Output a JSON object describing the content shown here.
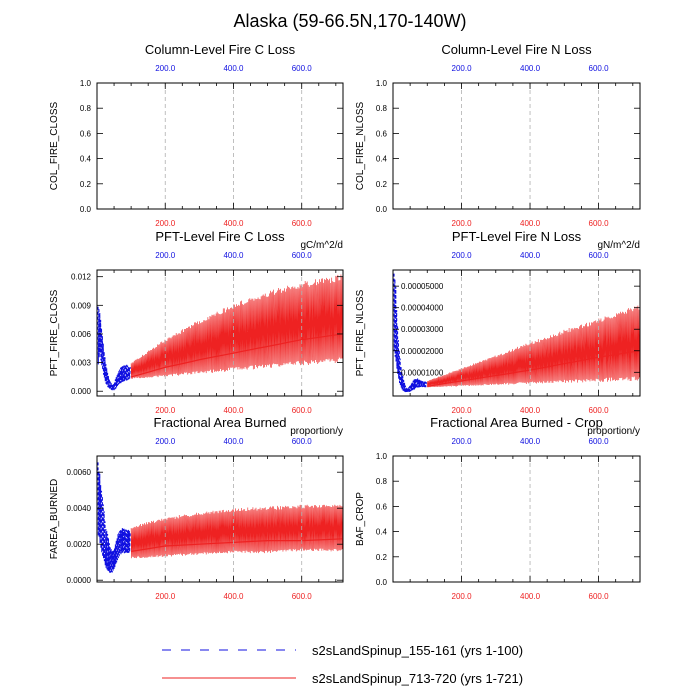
{
  "figure_title": "Alaska (59-66.5N,170-140W)",
  "colors": {
    "run1": "#1010e0",
    "run2": "#ee2222",
    "grid": "#b0b0b0",
    "axis": "#000000"
  },
  "chart_data": [
    {
      "type": "line",
      "title": "Column-Level Fire C Loss",
      "ylabel": "COL_FIRE_CLOSS",
      "units": "",
      "xlim": [
        0,
        721
      ],
      "ylim": [
        0,
        1
      ],
      "yticks": [
        "0.0",
        "0.2",
        "0.4",
        "0.6",
        "0.8",
        "1.0"
      ],
      "ytick_values": [
        0,
        0.2,
        0.4,
        0.6,
        0.8,
        1.0
      ],
      "top_ticks": [
        "200.0",
        "400.0",
        "600.0"
      ],
      "bottom_ticks": [
        "200.0",
        "400.0",
        "600.0"
      ],
      "xtick_values": [
        200,
        400,
        600
      ],
      "series": []
    },
    {
      "type": "line",
      "title": "Column-Level Fire N Loss",
      "ylabel": "COL_FIRE_NLOSS",
      "units": "",
      "xlim": [
        0,
        721
      ],
      "ylim": [
        0,
        1
      ],
      "yticks": [
        "0.0",
        "0.2",
        "0.4",
        "0.6",
        "0.8",
        "1.0"
      ],
      "ytick_values": [
        0,
        0.2,
        0.4,
        0.6,
        0.8,
        1.0
      ],
      "top_ticks": [
        "200.0",
        "400.0",
        "600.0"
      ],
      "bottom_ticks": [
        "200.0",
        "400.0",
        "600.0"
      ],
      "xtick_values": [
        200,
        400,
        600
      ],
      "series": []
    },
    {
      "type": "line",
      "title": "PFT-Level Fire C Loss",
      "ylabel": "PFT_FIRE_CLOSS",
      "units": "gC/m^2/d",
      "xlim": [
        0,
        721
      ],
      "ylim": [
        -0.0005,
        0.0127
      ],
      "yticks": [
        "0.000",
        "0.003",
        "0.006",
        "0.009",
        "0.012"
      ],
      "ytick_values": [
        0,
        0.003,
        0.006,
        0.009,
        0.012
      ],
      "top_ticks": [
        "200.0",
        "400.0",
        "600.0"
      ],
      "bottom_ticks": [
        "200.0",
        "400.0",
        "600.0"
      ],
      "xtick_values": [
        200,
        400,
        600
      ],
      "series": [
        {
          "name": "s2sLandSpinup_155-161 (yrs 1-100)",
          "style": "dashed",
          "color": "#1010e0",
          "x": [
            3,
            8,
            14,
            20,
            26,
            32,
            38,
            44,
            50,
            56,
            62,
            68,
            74,
            80,
            86,
            92,
            98
          ],
          "low": [
            0.0025,
            0.004,
            0.0025,
            0.0015,
            0.0008,
            0.0004,
            0.0002,
            0.0001,
            0.0001,
            0.0003,
            0.0006,
            0.0008,
            0.0009,
            0.001,
            0.0011,
            0.0012,
            0.0013
          ],
          "high": [
            0.0093,
            0.0085,
            0.0065,
            0.0045,
            0.003,
            0.0018,
            0.0011,
            0.0007,
            0.0008,
            0.0015,
            0.002,
            0.0025,
            0.0027,
            0.0028,
            0.0028,
            0.0027,
            0.0026
          ]
        },
        {
          "name": "s2sLandSpinup_713-720 (yrs 1-721)",
          "style": "solid",
          "color": "#ee2222",
          "x": [
            100,
            200,
            300,
            400,
            500,
            600,
            721
          ],
          "low": [
            0.0013,
            0.0015,
            0.0018,
            0.0021,
            0.0024,
            0.0027,
            0.003
          ],
          "high": [
            0.003,
            0.0055,
            0.0075,
            0.0092,
            0.0105,
            0.0115,
            0.0123
          ],
          "mid": [
            0.0015,
            0.0025,
            0.0033,
            0.004,
            0.0047,
            0.0054,
            0.006
          ]
        }
      ]
    },
    {
      "type": "line",
      "title": "PFT-Level Fire N Loss",
      "ylabel": "PFT_FIRE_NLOSS",
      "units": "gN/m^2/d",
      "xlim": [
        0,
        721
      ],
      "ylim": [
        -1e-06,
        5.75e-05
      ],
      "yticks": [
        "0.00001000",
        "0.00002000",
        "0.00003000",
        "0.00004000",
        "0.00005000"
      ],
      "ytick_values": [
        1e-05,
        2e-05,
        3e-05,
        4e-05,
        5e-05
      ],
      "top_ticks": [
        "200.0",
        "400.0",
        "600.0"
      ],
      "bottom_ticks": [
        "200.0",
        "400.0",
        "600.0"
      ],
      "xtick_values": [
        200,
        400,
        600
      ],
      "series": [
        {
          "name": "s2sLandSpinup_155-161 (yrs 1-100)",
          "style": "dashed",
          "color": "#1010e0",
          "x": [
            3,
            8,
            14,
            20,
            26,
            32,
            38,
            44,
            50,
            56,
            62,
            68,
            74,
            80,
            86,
            92,
            98
          ],
          "low": [
            2e-05,
            1.5e-05,
            8e-06,
            4e-06,
            2e-06,
            1e-06,
            5e-07,
            5e-07,
            1e-06,
            1.5e-06,
            2e-06,
            2.5e-06,
            3e-06,
            3e-06,
            3e-06,
            3e-06,
            3e-06
          ],
          "high": [
            5.75e-05,
            5e-05,
            3e-05,
            1.8e-05,
            1e-05,
            6e-06,
            3e-06,
            3e-06,
            4e-06,
            5.5e-06,
            7e-06,
            7.5e-06,
            7e-06,
            6.5e-06,
            6e-06,
            5.8e-06,
            5.6e-06
          ]
        },
        {
          "name": "s2sLandSpinup_713-720 (yrs 1-721)",
          "style": "solid",
          "color": "#ee2222",
          "x": [
            100,
            200,
            300,
            400,
            500,
            600,
            721
          ],
          "low": [
            3e-06,
            3.5e-06,
            4e-06,
            4.5e-06,
            5e-06,
            5.5e-06,
            6e-06
          ],
          "high": [
            6e-06,
            1.2e-05,
            1.8e-05,
            2.4e-05,
            3e-05,
            3.5e-05,
            4.2e-05
          ],
          "mid": [
            3.5e-06,
            6e-06,
            8.5e-06,
            1.1e-05,
            1.4e-05,
            1.7e-05,
            2e-05
          ]
        }
      ]
    },
    {
      "type": "line",
      "title": "Fractional Area Burned",
      "ylabel": "FAREA_BURNED",
      "units": "proportion/y",
      "xlim": [
        0,
        721
      ],
      "ylim": [
        -0.0001,
        0.0069
      ],
      "yticks": [
        "0.0000",
        "0.0020",
        "0.0040",
        "0.0060"
      ],
      "ytick_values": [
        0,
        0.002,
        0.004,
        0.006
      ],
      "top_ticks": [
        "200.0",
        "400.0",
        "600.0"
      ],
      "bottom_ticks": [
        "200.0",
        "400.0",
        "600.0"
      ],
      "xtick_values": [
        200,
        400,
        600
      ],
      "series": [
        {
          "name": "s2sLandSpinup_155-161 (yrs 1-100)",
          "style": "dashed",
          "color": "#1010e0",
          "x": [
            3,
            8,
            14,
            20,
            26,
            32,
            38,
            44,
            50,
            56,
            62,
            68,
            74,
            80,
            86,
            92,
            98
          ],
          "low": [
            0.0025,
            0.002,
            0.0015,
            0.001,
            0.0007,
            0.0005,
            0.0004,
            0.0004,
            0.0006,
            0.0009,
            0.0012,
            0.0014,
            0.0015,
            0.0015,
            0.0015,
            0.0015,
            0.0015
          ],
          "high": [
            0.0066,
            0.006,
            0.005,
            0.004,
            0.003,
            0.0025,
            0.0019,
            0.0016,
            0.0017,
            0.0022,
            0.0026,
            0.0028,
            0.0029,
            0.0029,
            0.0028,
            0.0028,
            0.0027
          ]
        },
        {
          "name": "s2sLandSpinup_713-720 (yrs 1-721)",
          "style": "solid",
          "color": "#ee2222",
          "x": [
            100,
            200,
            300,
            400,
            500,
            600,
            721
          ],
          "low": [
            0.0012,
            0.0013,
            0.0014,
            0.0015,
            0.0015,
            0.0016,
            0.0016
          ],
          "high": [
            0.003,
            0.0035,
            0.0038,
            0.004,
            0.0041,
            0.0042,
            0.0043
          ],
          "mid": [
            0.0016,
            0.0019,
            0.002,
            0.0021,
            0.0022,
            0.0022,
            0.0023
          ]
        }
      ]
    },
    {
      "type": "line",
      "title": "Fractional Area Burned - Crop",
      "ylabel": "BAF_CROP",
      "units": "proportion/y",
      "xlim": [
        0,
        721
      ],
      "ylim": [
        0,
        1
      ],
      "yticks": [
        "0.0",
        "0.2",
        "0.4",
        "0.6",
        "0.8",
        "1.0"
      ],
      "ytick_values": [
        0,
        0.2,
        0.4,
        0.6,
        0.8,
        1.0
      ],
      "top_ticks": [
        "200.0",
        "400.0",
        "600.0"
      ],
      "bottom_ticks": [
        "200.0",
        "400.0",
        "600.0"
      ],
      "xtick_values": [
        200,
        400,
        600
      ],
      "series": []
    }
  ],
  "legend": [
    {
      "label": "s2sLandSpinup_155-161 (yrs 1-100)",
      "style": "dashed",
      "color": "#1010e0"
    },
    {
      "label": "s2sLandSpinup_713-720 (yrs 1-721)",
      "style": "solid",
      "color": "#ee2222"
    }
  ]
}
